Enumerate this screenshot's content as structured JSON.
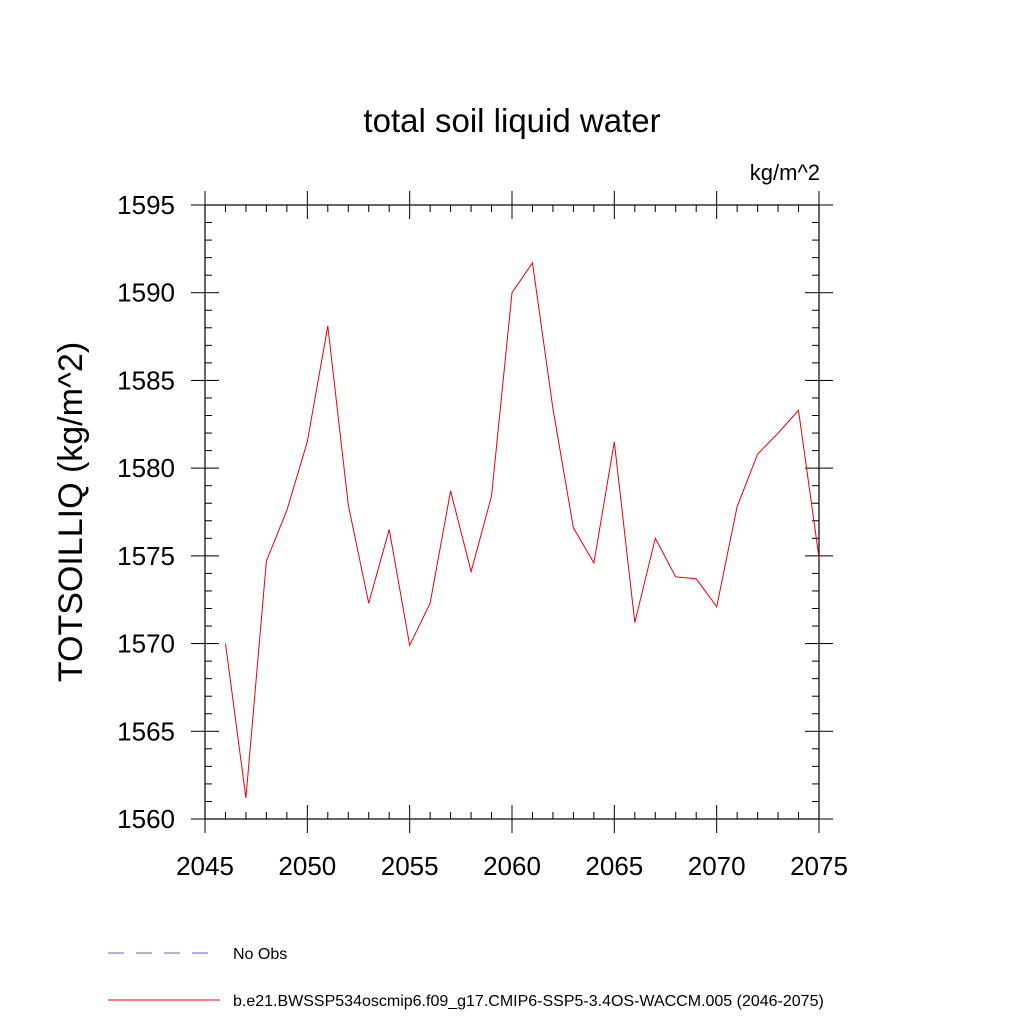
{
  "chart_data": {
    "type": "line",
    "title": "total soil liquid water",
    "units_label": "kg/m^2",
    "ylabel": "TOTSOILLIQ  (kg/m^2)",
    "xlabel": "",
    "xlim": [
      2045,
      2075
    ],
    "ylim": [
      1560,
      1595
    ],
    "x_ticks": [
      2045,
      2050,
      2055,
      2060,
      2065,
      2070,
      2075
    ],
    "y_ticks": [
      1560,
      1565,
      1570,
      1575,
      1580,
      1585,
      1590,
      1595
    ],
    "grid": false,
    "legend_position": "bottom-left",
    "series": [
      {
        "name": "b.e21.BWSSP534oscmip6.f09_g17.CMIP6-SSP5-3.4OS-WACCM.005 (2046-2075)",
        "color": "#e8000b",
        "style": "solid",
        "x": [
          2046,
          2047,
          2048,
          2049,
          2050,
          2051,
          2052,
          2053,
          2054,
          2055,
          2056,
          2057,
          2058,
          2059,
          2060,
          2061,
          2062,
          2063,
          2064,
          2065,
          2066,
          2067,
          2068,
          2069,
          2070,
          2071,
          2072,
          2073,
          2074,
          2075
        ],
        "values": [
          1570.0,
          1561.2,
          1574.7,
          1577.6,
          1581.5,
          1588.1,
          1577.9,
          1572.3,
          1576.5,
          1569.9,
          1572.3,
          1578.7,
          1574.1,
          1578.4,
          1590.0,
          1591.7,
          1583.4,
          1576.6,
          1574.6,
          1581.5,
          1571.2,
          1576.0,
          1573.8,
          1573.7,
          1572.1,
          1577.8,
          1580.8,
          1582.0,
          1583.3,
          1574.9
        ]
      },
      {
        "name": "No Obs",
        "color": "#6b5fa8",
        "style": "dashed",
        "x": [],
        "values": []
      }
    ]
  }
}
